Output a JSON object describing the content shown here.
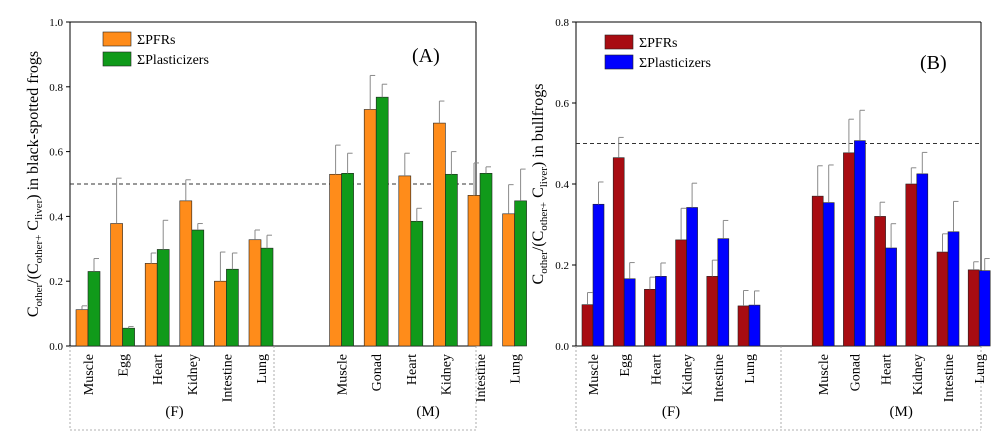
{
  "chart_data": [
    {
      "type": "bar",
      "panel_label": "(A)",
      "ylabel_parts": [
        "C",
        "other",
        "/(C",
        "other+",
        " C",
        "liver",
        ") in black-spotted frogs"
      ],
      "ylim": [
        0,
        1.0
      ],
      "yticks": [
        "0.0",
        "0.2",
        "0.4",
        "0.6",
        "0.8",
        "1.0"
      ],
      "reference_line": 0.5,
      "groups": [
        {
          "label": "(F)",
          "categories": [
            "Muscle",
            "Egg",
            "Heart",
            "Kidney",
            "Intestine",
            "Lung"
          ]
        },
        {
          "label": "(M)",
          "categories": [
            "Muscle",
            "Gonad",
            "Heart",
            "Kidney",
            "Intestine",
            "Lung"
          ]
        }
      ],
      "legend_position": "top-left",
      "series": [
        {
          "name": "ΣPFRs",
          "color": "#FF8C1A",
          "values": [
            0.112,
            0.378,
            0.255,
            0.448,
            0.2,
            0.328,
            0.53,
            0.73,
            0.525,
            0.688,
            0.465,
            0.408
          ],
          "errors": [
            0.012,
            0.14,
            0.032,
            0.065,
            0.09,
            0.03,
            0.09,
            0.105,
            0.07,
            0.068,
            0.1,
            0.09
          ]
        },
        {
          "name": "ΣPlasticizers",
          "color": "#109A1A",
          "values": [
            0.23,
            0.055,
            0.298,
            0.358,
            0.237,
            0.302,
            0.533,
            0.768,
            0.385,
            0.53,
            0.533,
            0.448
          ],
          "errors": [
            0.04,
            0.005,
            0.09,
            0.02,
            0.05,
            0.04,
            0.062,
            0.04,
            0.04,
            0.07,
            0.02,
            0.098
          ]
        }
      ]
    },
    {
      "type": "bar",
      "panel_label": "(B)",
      "ylabel_parts": [
        "C",
        "other",
        "/(C",
        "other+",
        " C",
        "liver",
        ") in bullfrogs"
      ],
      "ylim": [
        0,
        0.8
      ],
      "yticks": [
        "0.0",
        "0.2",
        "0.4",
        "0.6",
        "0.8"
      ],
      "reference_line": 0.5,
      "groups": [
        {
          "label": "(F)",
          "categories": [
            "Muscle",
            "Egg",
            "Heart",
            "Kidney",
            "Intestine",
            "Lung"
          ]
        },
        {
          "label": "(M)",
          "categories": [
            "Muscle",
            "Gonad",
            "Heart",
            "Kidney",
            "Intestine",
            "Lung"
          ]
        }
      ],
      "legend_position": "top-left",
      "series": [
        {
          "name": "ΣPFRs",
          "color": "#A80C12",
          "values": [
            0.102,
            0.465,
            0.14,
            0.262,
            0.172,
            0.099,
            0.37,
            0.477,
            0.32,
            0.4,
            0.232,
            0.188
          ],
          "errors": [
            0.03,
            0.05,
            0.03,
            0.078,
            0.04,
            0.038,
            0.075,
            0.083,
            0.035,
            0.04,
            0.045,
            0.02
          ]
        },
        {
          "name": "ΣPlasticizers",
          "color": "#0000FF",
          "values": [
            0.35,
            0.166,
            0.172,
            0.342,
            0.265,
            0.101,
            0.354,
            0.507,
            0.242,
            0.425,
            0.282,
            0.186
          ],
          "errors": [
            0.055,
            0.04,
            0.033,
            0.06,
            0.045,
            0.035,
            0.093,
            0.075,
            0.06,
            0.053,
            0.075,
            0.03
          ]
        }
      ]
    }
  ]
}
